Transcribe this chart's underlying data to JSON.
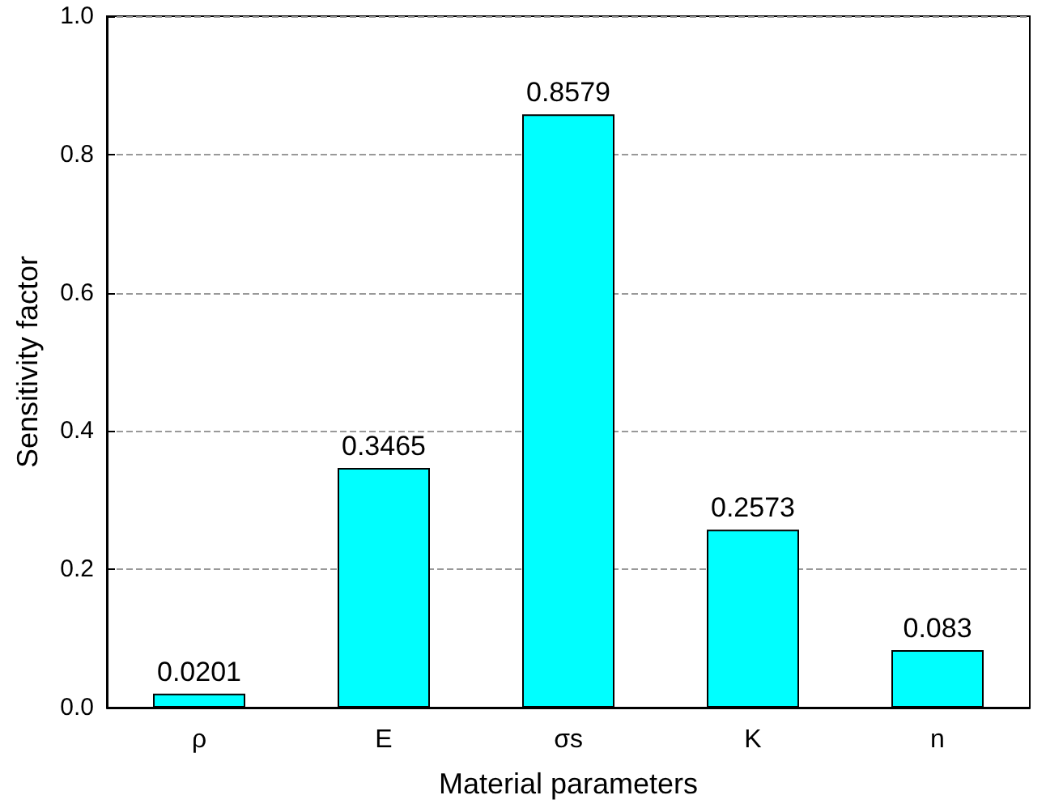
{
  "chart_data": {
    "type": "bar",
    "xlabel": "Material parameters",
    "ylabel": "Sensitivity factor",
    "categories": [
      "ρ",
      "E",
      "σs",
      "K",
      "n"
    ],
    "values": [
      0.0201,
      0.3465,
      0.8579,
      0.2573,
      0.083
    ],
    "color": "#00ffff",
    "ylim": [
      0,
      1
    ],
    "yticks": [
      {
        "value": 0,
        "label": "0.0"
      },
      {
        "value": 0.2,
        "label": "0.2"
      },
      {
        "value": 0.4,
        "label": "0.4"
      },
      {
        "value": 0.6,
        "label": "0.6"
      },
      {
        "value": 0.8,
        "label": "0.8"
      },
      {
        "value": 1,
        "label": "1.0"
      }
    ],
    "grid": "y",
    "data_labels": true
  }
}
